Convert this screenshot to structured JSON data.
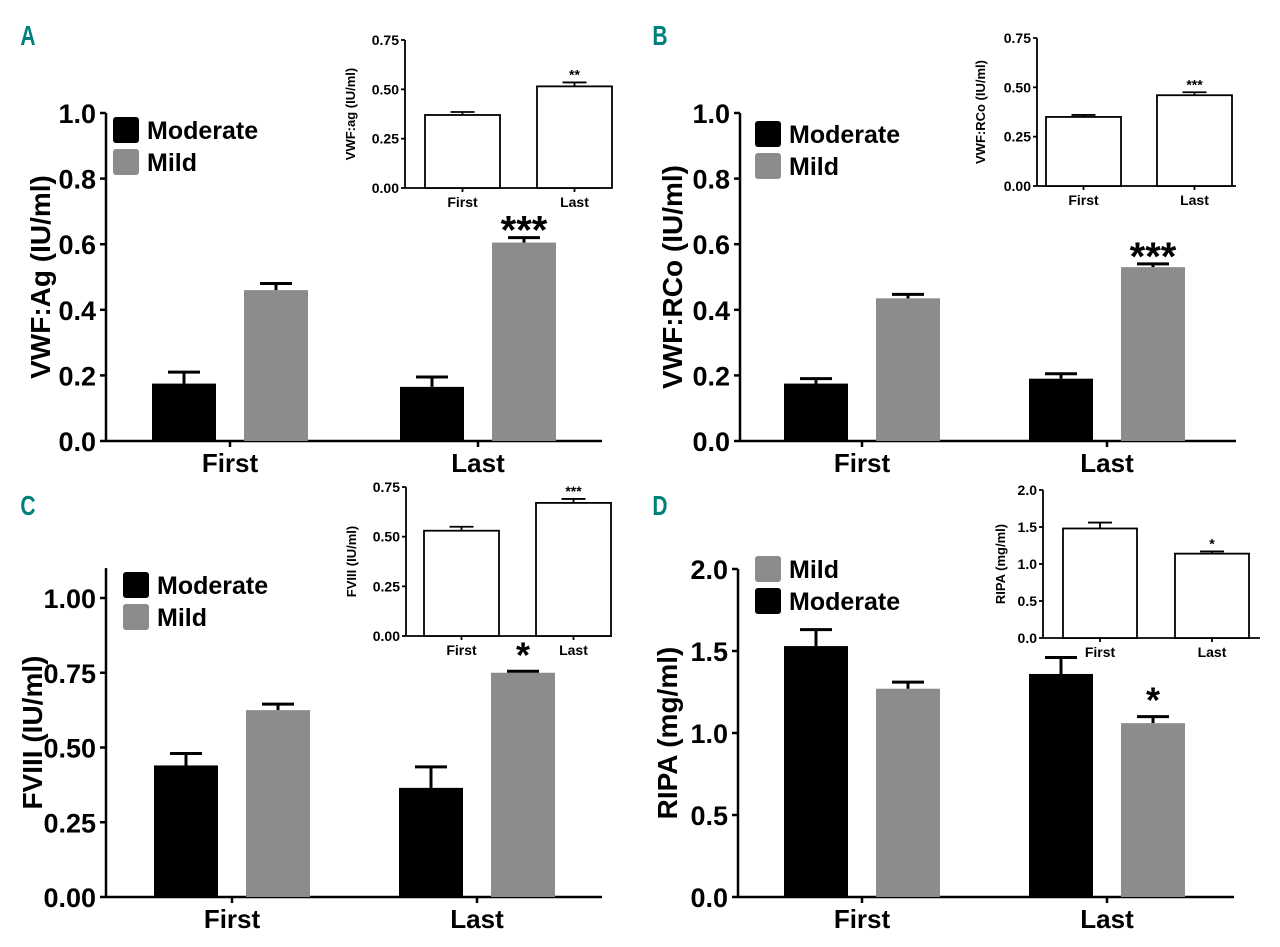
{
  "colors": {
    "moderate": "#000000",
    "mild": "#8c8c8c",
    "inset": "#ffffff",
    "panel_letter": "#00807a"
  },
  "chart_data": [
    {
      "panel": "A",
      "type": "bar",
      "ylabel": "VWF:Ag (IU/ml)",
      "ylim": [
        0,
        1.0
      ],
      "yticks": [
        "0.0",
        "0.2",
        "0.4",
        "0.6",
        "0.8",
        "1.0"
      ],
      "ytick_values": [
        0,
        0.2,
        0.4,
        0.6,
        0.8,
        1.0
      ],
      "categories": [
        "First",
        "Last"
      ],
      "legend": [
        "Moderate",
        "Mild"
      ],
      "series": [
        {
          "name": "Moderate",
          "values": [
            0.175,
            0.165
          ],
          "errors": [
            0.035,
            0.03
          ],
          "annotations": [
            "",
            ""
          ]
        },
        {
          "name": "Mild",
          "values": [
            0.46,
            0.605
          ],
          "errors": [
            0.02,
            0.015
          ],
          "annotations": [
            "",
            "***"
          ]
        }
      ],
      "inset": {
        "ylabel": "VWF:ag (IU/ml)",
        "ylim": [
          0,
          0.75
        ],
        "yticks": [
          "0.00",
          "0.25",
          "0.50",
          "0.75"
        ],
        "ytick_values": [
          0,
          0.25,
          0.5,
          0.75
        ],
        "categories": [
          "First",
          "Last"
        ],
        "values": [
          0.37,
          0.515
        ],
        "errors": [
          0.015,
          0.02
        ],
        "annotations": [
          "",
          "**"
        ]
      }
    },
    {
      "panel": "B",
      "type": "bar",
      "ylabel": "VWF:RCo (IU/ml)",
      "ylim": [
        0,
        1.0
      ],
      "yticks": [
        "0.0",
        "0.2",
        "0.4",
        "0.6",
        "0.8",
        "1.0"
      ],
      "ytick_values": [
        0,
        0.2,
        0.4,
        0.6,
        0.8,
        1.0
      ],
      "categories": [
        "First",
        "Last"
      ],
      "legend": [
        "Moderate",
        "Mild"
      ],
      "series": [
        {
          "name": "Moderate",
          "values": [
            0.175,
            0.19
          ],
          "errors": [
            0.015,
            0.015
          ],
          "annotations": [
            "",
            ""
          ]
        },
        {
          "name": "Mild",
          "values": [
            0.435,
            0.53
          ],
          "errors": [
            0.012,
            0.01
          ],
          "annotations": [
            "",
            "***"
          ]
        }
      ],
      "inset": {
        "ylabel": "VWF:RCo (IU/ml)",
        "ylim": [
          0,
          0.75
        ],
        "yticks": [
          "0.00",
          "0.25",
          "0.50",
          "0.75"
        ],
        "ytick_values": [
          0,
          0.25,
          0.5,
          0.75
        ],
        "categories": [
          "First",
          "Last"
        ],
        "values": [
          0.35,
          0.46
        ],
        "errors": [
          0.01,
          0.015
        ],
        "annotations": [
          "",
          "***"
        ]
      }
    },
    {
      "panel": "C",
      "type": "bar",
      "ylabel": "FVIII (IU/ml)",
      "ylim": [
        0,
        1.1
      ],
      "yticks": [
        "0.00",
        "0.25",
        "0.50",
        "0.75",
        "1.00"
      ],
      "ytick_values": [
        0,
        0.25,
        0.5,
        0.75,
        1.0
      ],
      "categories": [
        "First",
        "Last"
      ],
      "legend": [
        "Moderate",
        "Mild"
      ],
      "series": [
        {
          "name": "Moderate",
          "values": [
            0.44,
            0.365
          ],
          "errors": [
            0.04,
            0.07
          ],
          "annotations": [
            "",
            ""
          ]
        },
        {
          "name": "Mild",
          "values": [
            0.625,
            0.75
          ],
          "errors": [
            0.02,
            0.005
          ],
          "annotations": [
            "",
            "*"
          ]
        }
      ],
      "inset": {
        "ylabel": "FVIII (IU/ml)",
        "ylim": [
          0,
          0.75
        ],
        "yticks": [
          "0.00",
          "0.25",
          "0.50",
          "0.75"
        ],
        "ytick_values": [
          0,
          0.25,
          0.5,
          0.75
        ],
        "categories": [
          "First",
          "Last"
        ],
        "values": [
          0.53,
          0.67
        ],
        "errors": [
          0.02,
          0.02
        ],
        "annotations": [
          "",
          "***"
        ]
      }
    },
    {
      "panel": "D",
      "type": "bar",
      "ylabel": "RIPA (mg/ml)",
      "ylim": [
        0,
        2.0
      ],
      "yticks": [
        "0.0",
        "0.5",
        "1.0",
        "1.5",
        "2.0"
      ],
      "ytick_values": [
        0,
        0.5,
        1.0,
        1.5,
        2.0
      ],
      "categories": [
        "First",
        "Last"
      ],
      "legend": [
        "Mild",
        "Moderate"
      ],
      "series": [
        {
          "name": "Moderate",
          "values": [
            1.53,
            1.36
          ],
          "errors": [
            0.1,
            0.1
          ],
          "annotations": [
            "",
            ""
          ]
        },
        {
          "name": "Mild",
          "values": [
            1.27,
            1.06
          ],
          "errors": [
            0.04,
            0.04
          ],
          "annotations": [
            "",
            "*"
          ]
        }
      ],
      "inset": {
        "ylabel": "RIPA (mg/ml)",
        "ylim": [
          0,
          2.0
        ],
        "yticks": [
          "0.0",
          "0.5",
          "1.0",
          "1.5",
          "2.0"
        ],
        "ytick_values": [
          0,
          0.5,
          1.0,
          1.5,
          2.0
        ],
        "categories": [
          "First",
          "Last"
        ],
        "values": [
          1.48,
          1.14
        ],
        "errors": [
          0.08,
          0.03
        ],
        "annotations": [
          "",
          "*"
        ]
      }
    }
  ]
}
